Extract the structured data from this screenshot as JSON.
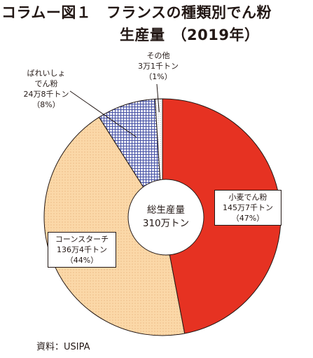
{
  "title": {
    "prefix": "コラムー図１",
    "line1": "フランスの種類別でん粉",
    "line2": "生産量",
    "year": "（2019年）"
  },
  "source": "資料：USIPA",
  "chart_data": {
    "type": "pie",
    "center_label": [
      "総生産量",
      "310万トン"
    ],
    "slices": [
      {
        "name": "小麦でん粉",
        "value": 47,
        "amount": "145万7千トン",
        "pct_label": "（47%）",
        "color": "#e63222",
        "pattern": "solid"
      },
      {
        "name": "コーンスターチ",
        "value": 44,
        "amount": "136万4千トン",
        "pct_label": "（44%）",
        "color": "#fbd8a8",
        "pattern": "dots"
      },
      {
        "name": "ばれいしょでん粉",
        "value": 8,
        "amount": "24万8千トン",
        "pct_label": "（8%）",
        "color": "#6f77b8",
        "pattern": "grid"
      },
      {
        "name": "その他",
        "value": 1,
        "amount": "3万1千トン",
        "pct_label": "（1%）",
        "color": "#ffffff",
        "pattern": "fine"
      }
    ],
    "potato_label_lines": [
      "ばれいしょ",
      "でん粉"
    ],
    "other_label_lines": [
      "その他"
    ]
  }
}
